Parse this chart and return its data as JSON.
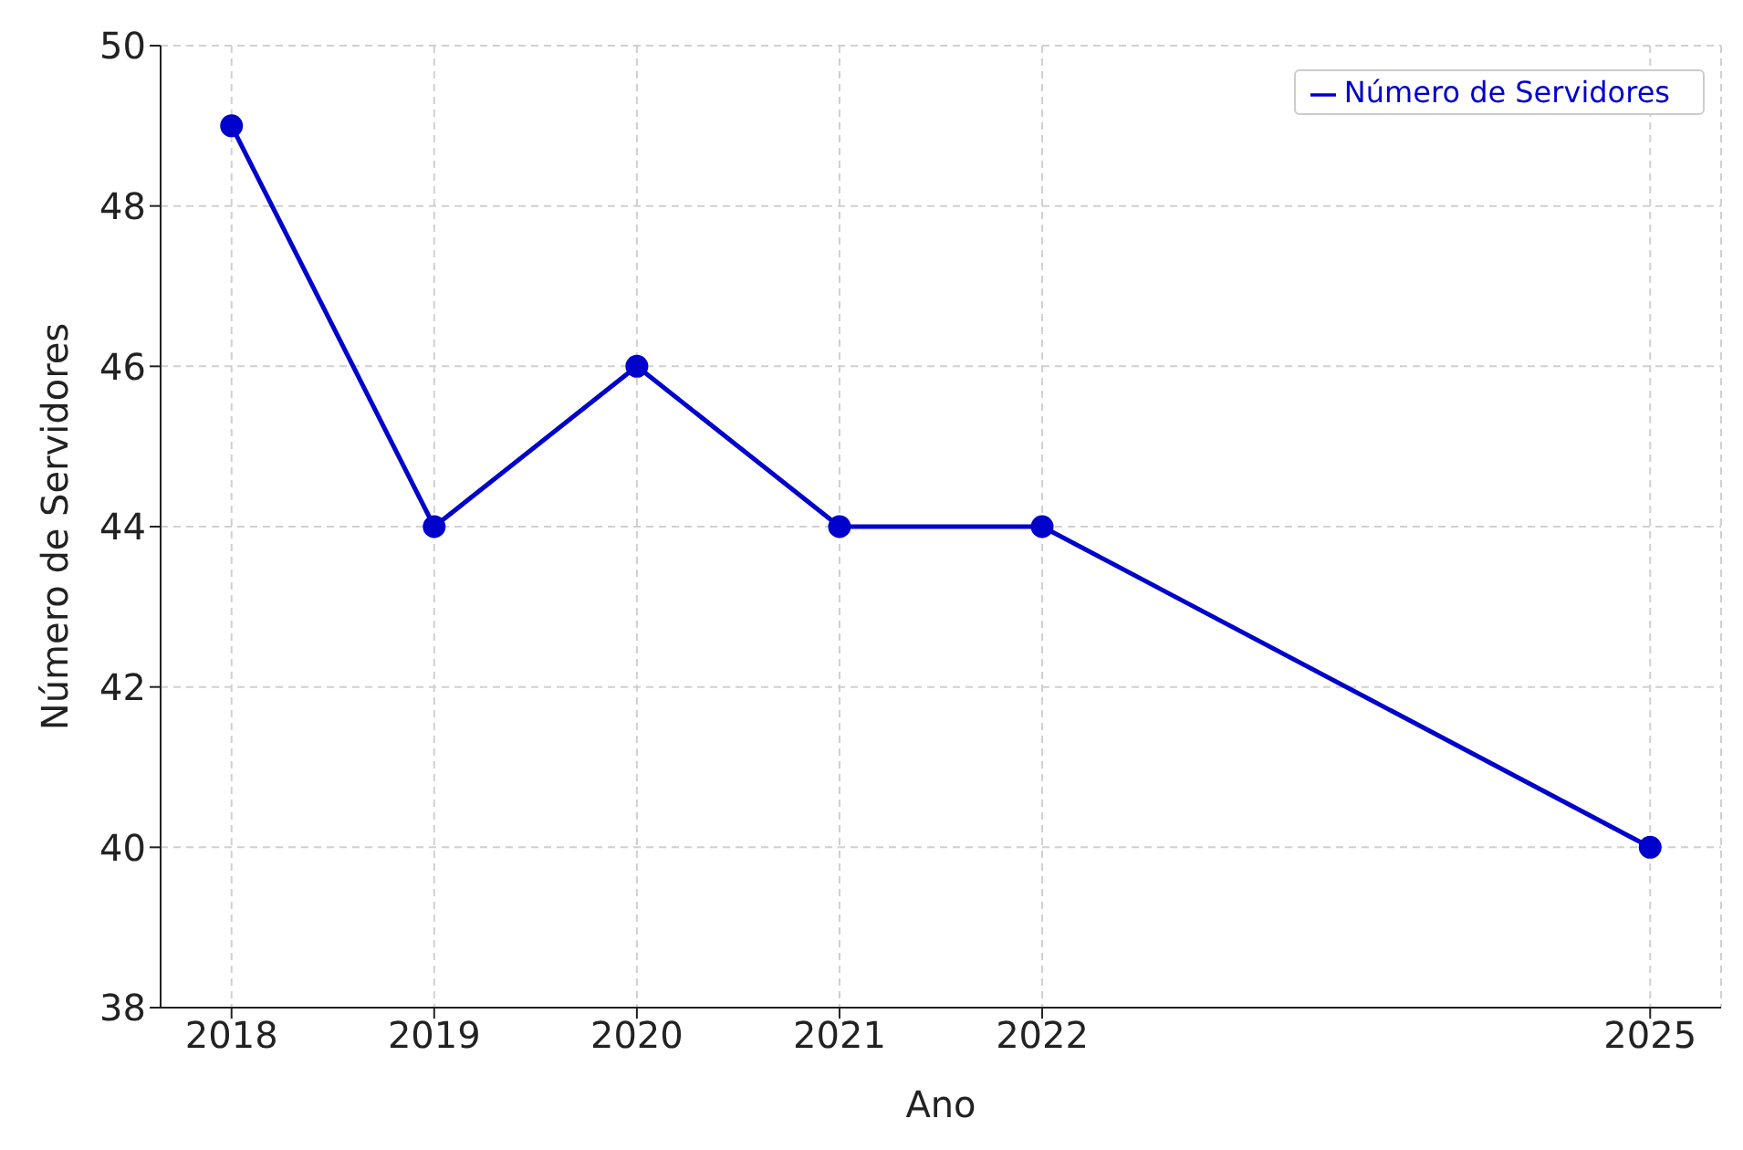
{
  "chart_data": {
    "type": "line",
    "xlabel": "Ano",
    "ylabel": "Número de Servidores",
    "x": [
      2018,
      2019,
      2020,
      2021,
      2022,
      2025
    ],
    "series": [
      {
        "name": "Número de Servidores",
        "color": "#0000cc",
        "values": [
          49,
          44,
          46,
          44,
          44,
          40
        ]
      }
    ],
    "xlim": [
      2017.65,
      2025.35
    ],
    "xticks": [
      2018,
      2019,
      2020,
      2021,
      2022,
      2025
    ],
    "ylim": [
      38,
      50
    ],
    "yticks": [
      38,
      40,
      42,
      44,
      46,
      48,
      50
    ],
    "grid": true,
    "legend": "top right",
    "marker": "circle",
    "line_style": "solid"
  }
}
